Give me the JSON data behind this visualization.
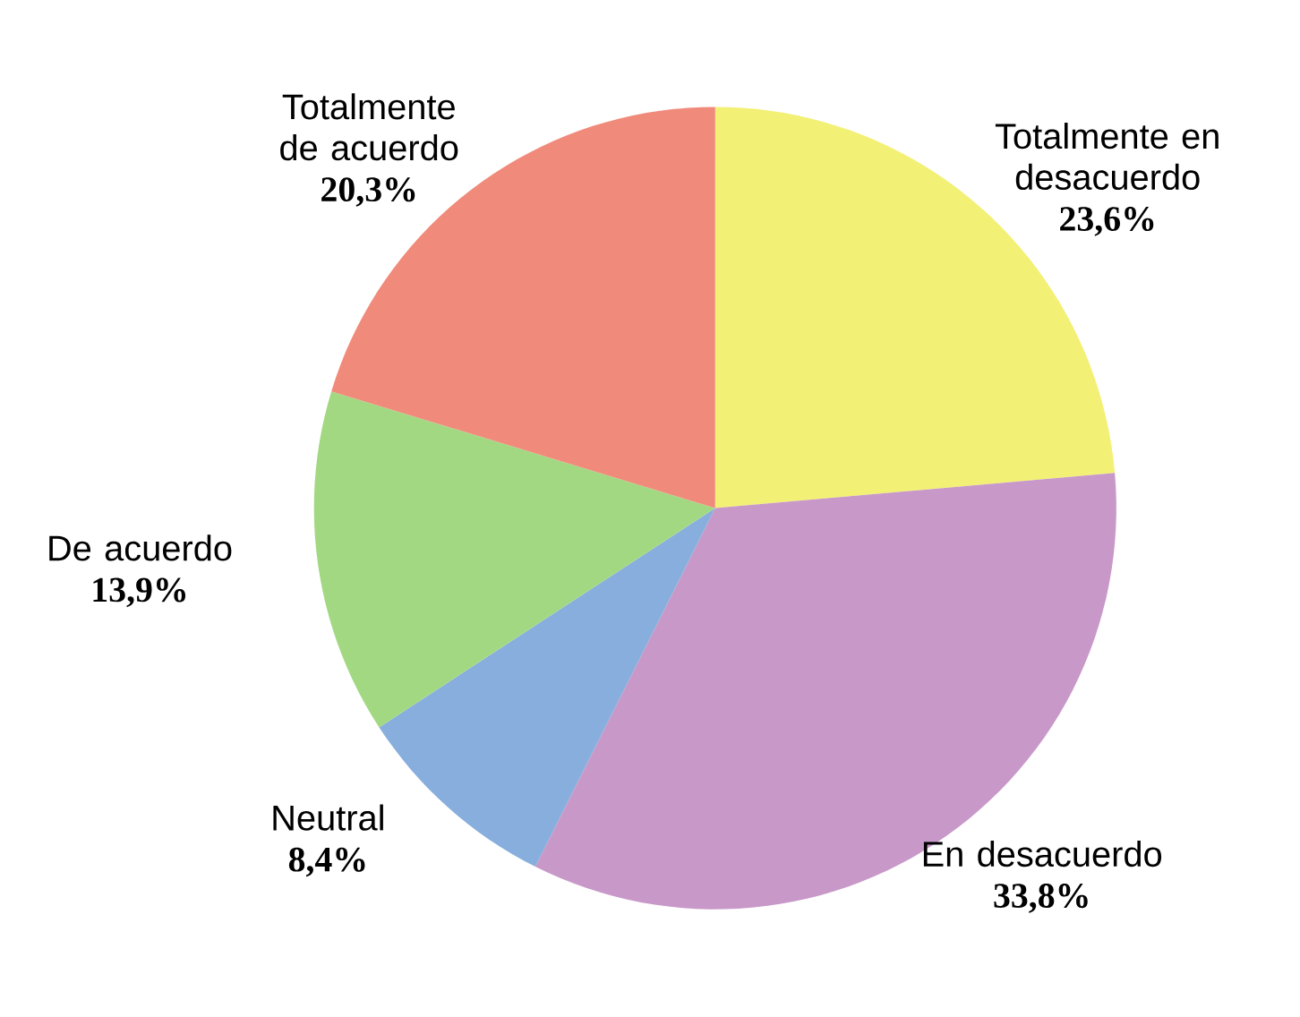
{
  "chart_data": {
    "type": "pie",
    "categories": [
      "Totalmente en desacuerdo",
      "En desacuerdo",
      "Neutral",
      "De acuerdo",
      "Totalmente de acuerdo"
    ],
    "values": [
      23.6,
      33.8,
      8.4,
      13.9,
      20.3
    ],
    "value_labels": [
      "23,6%",
      "33,8%",
      "8,4%",
      "13,9%",
      "20,3%"
    ],
    "colors": [
      "#f3f076",
      "#c898c8",
      "#87aedc",
      "#a3d883",
      "#f08a7a"
    ]
  }
}
